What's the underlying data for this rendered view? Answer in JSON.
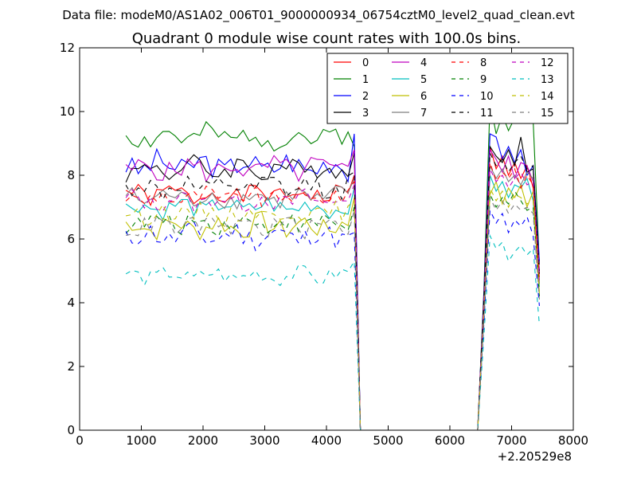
{
  "header": {
    "data_file": "Data file: modeM0/AS1A02_006T01_9000000934_06754cztM0_level2_quad_clean.evt"
  },
  "chart_data": {
    "type": "line",
    "title": "Quadrant 0 module wise count rates with 100.0s bins.",
    "xlabel": "",
    "ylabel": "",
    "xlim": [
      0,
      8000
    ],
    "ylim": [
      0,
      12
    ],
    "x_offset_label": "+2.20529e8",
    "x_ticks": [
      0,
      1000,
      2000,
      3000,
      4000,
      5000,
      6000,
      7000,
      8000
    ],
    "x_tick_labels": [
      "0",
      "1000",
      "2000",
      "3000",
      "4000",
      "5000",
      "6000",
      "7000",
      "8000"
    ],
    "y_ticks": [
      0,
      2,
      4,
      6,
      8,
      10,
      12
    ],
    "y_tick_labels": [
      "0",
      "2",
      "4",
      "6",
      "8",
      "10",
      "12"
    ],
    "grid": false,
    "legend_position": "top-right",
    "segment1": {
      "x_start": 750,
      "x_end": 4350,
      "step": 100
    },
    "drop_x": [
      4450,
      4550
    ],
    "zero_x": [
      4650,
      4750,
      4850,
      4950,
      5050,
      5150,
      5250,
      5350,
      5450,
      5550,
      5650,
      5750,
      5850,
      5950,
      6050,
      6150,
      6250,
      6350,
      6450
    ],
    "segment2": {
      "x": [
        6550,
        6650,
        6750,
        6850,
        6950,
        7050,
        7150,
        7250,
        7350,
        7450
      ]
    },
    "series": [
      {
        "name": "0",
        "color": "#ff0000",
        "dash": "solid",
        "base": 7.4,
        "amp": 0.3,
        "seed": 1,
        "drop": [
          8.0,
          0.0
        ],
        "seg2": [
          4.0,
          8.9,
          8.2,
          8.6,
          8.0,
          8.4,
          7.9,
          8.3,
          7.6,
          4.6
        ]
      },
      {
        "name": "1",
        "color": "#008000",
        "dash": "solid",
        "base": 9.2,
        "amp": 0.35,
        "seed": 2,
        "drop": [
          8.9,
          0.0
        ],
        "seg2": [
          4.3,
          10.3,
          9.3,
          9.9,
          9.4,
          9.8,
          10.1,
          9.7,
          9.7,
          5.2
        ]
      },
      {
        "name": "2",
        "color": "#0000ff",
        "dash": "solid",
        "base": 8.3,
        "amp": 0.4,
        "seed": 3,
        "drop": [
          9.3,
          0.0
        ],
        "seg2": [
          4.2,
          9.3,
          9.2,
          8.5,
          8.9,
          8.4,
          8.8,
          8.0,
          8.3,
          5.3
        ]
      },
      {
        "name": "3",
        "color": "#000000",
        "dash": "solid",
        "base": 8.2,
        "amp": 0.35,
        "seed": 4,
        "drop": [
          8.7,
          0.0
        ],
        "seg2": [
          4.1,
          8.9,
          8.6,
          8.4,
          8.8,
          8.3,
          9.2,
          8.1,
          8.2,
          5.0
        ]
      },
      {
        "name": "4",
        "color": "#bf00bf",
        "dash": "solid",
        "base": 8.2,
        "amp": 0.35,
        "seed": 5,
        "drop": [
          8.8,
          0.0
        ],
        "seg2": [
          4.0,
          8.8,
          8.5,
          8.1,
          8.6,
          7.9,
          8.4,
          8.3,
          7.8,
          5.0
        ]
      },
      {
        "name": "5",
        "color": "#00bfbf",
        "dash": "solid",
        "base": 7.0,
        "amp": 0.3,
        "seed": 6,
        "drop": [
          7.6,
          0.0
        ],
        "seg2": [
          3.8,
          8.0,
          7.5,
          7.8,
          7.3,
          7.7,
          7.6,
          7.9,
          7.2,
          4.5
        ]
      },
      {
        "name": "6",
        "color": "#bfbf00",
        "dash": "solid",
        "base": 6.4,
        "amp": 0.35,
        "seed": 7,
        "drop": [
          7.3,
          0.0
        ],
        "seg2": [
          3.6,
          7.4,
          7.8,
          7.1,
          7.6,
          7.3,
          7.7,
          7.0,
          7.5,
          4.3
        ]
      },
      {
        "name": "7",
        "color": "#7f7f7f",
        "dash": "solid",
        "base": 7.3,
        "amp": 0.3,
        "seed": 8,
        "drop": [
          7.9,
          0.0
        ],
        "seg2": [
          3.9,
          8.3,
          7.9,
          8.2,
          7.8,
          8.0,
          7.7,
          8.1,
          7.9,
          4.8
        ]
      },
      {
        "name": "8",
        "color": "#ff0000",
        "dash": "dashed",
        "base": 7.3,
        "amp": 0.3,
        "seed": 9,
        "drop": [
          7.8,
          0.0
        ],
        "seg2": [
          3.9,
          8.4,
          7.8,
          8.1,
          7.9,
          8.2,
          7.6,
          8.0,
          7.7,
          4.7
        ]
      },
      {
        "name": "9",
        "color": "#008000",
        "dash": "dashed",
        "base": 6.5,
        "amp": 0.3,
        "seed": 10,
        "drop": [
          7.0,
          0.0
        ],
        "seg2": [
          3.5,
          7.4,
          7.0,
          7.3,
          7.1,
          7.5,
          7.2,
          6.9,
          7.0,
          4.2
        ]
      },
      {
        "name": "10",
        "color": "#0000ff",
        "dash": "dashed",
        "base": 6.1,
        "amp": 0.35,
        "seed": 11,
        "drop": [
          6.2,
          0.0
        ],
        "seg2": [
          3.3,
          6.9,
          6.5,
          6.8,
          6.2,
          6.6,
          6.4,
          6.7,
          6.1,
          3.9
        ]
      },
      {
        "name": "11",
        "color": "#000000",
        "dash": "dashed",
        "base": 7.6,
        "amp": 0.35,
        "seed": 12,
        "drop": [
          8.1,
          0.0
        ],
        "seg2": [
          4.0,
          8.7,
          8.3,
          8.5,
          8.1,
          8.4,
          8.6,
          8.2,
          8.3,
          4.9
        ]
      },
      {
        "name": "12",
        "color": "#bf00bf",
        "dash": "dashed",
        "base": 7.2,
        "amp": 0.3,
        "seed": 13,
        "drop": [
          7.7,
          0.0
        ],
        "seg2": [
          3.9,
          8.2,
          7.8,
          8.0,
          7.6,
          7.9,
          8.1,
          7.7,
          7.8,
          4.7
        ]
      },
      {
        "name": "13",
        "color": "#00bfbf",
        "dash": "dashed",
        "base": 4.85,
        "amp": 0.25,
        "seed": 14,
        "drop": [
          5.3,
          0.0
        ],
        "seg2": [
          2.9,
          6.1,
          5.7,
          5.9,
          5.3,
          5.6,
          5.8,
          5.5,
          5.7,
          3.3
        ]
      },
      {
        "name": "14",
        "color": "#bfbf00",
        "dash": "dashed",
        "base": 6.8,
        "amp": 0.3,
        "seed": 15,
        "drop": [
          7.2,
          0.0
        ],
        "seg2": [
          3.6,
          7.6,
          7.2,
          7.5,
          7.0,
          7.4,
          7.3,
          7.1,
          7.2,
          4.3
        ]
      },
      {
        "name": "15",
        "color": "#7f7f7f",
        "dash": "dashed",
        "base": 6.4,
        "amp": 0.3,
        "seed": 16,
        "drop": [
          6.9,
          0.0
        ],
        "seg2": [
          3.4,
          7.3,
          6.9,
          7.2,
          6.8,
          7.1,
          6.9,
          7.0,
          6.8,
          4.1
        ]
      }
    ]
  }
}
